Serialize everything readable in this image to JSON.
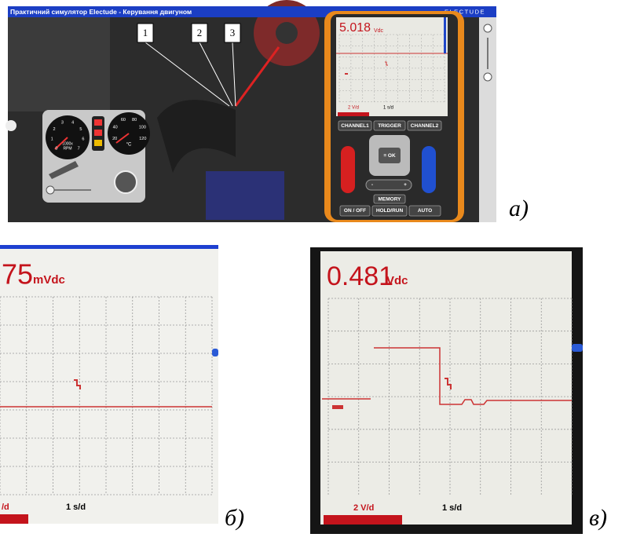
{
  "panel_a": {
    "label": "а)",
    "title_bar": {
      "title": "Практичний симулятор Electude - Керування двигуном",
      "brand": "ELECTUDE"
    },
    "callouts": [
      "1",
      "2",
      "3"
    ],
    "dashboard": {
      "rpm_scale": [
        "0",
        "1",
        "2",
        "3",
        "4",
        "5",
        "6",
        "7"
      ],
      "rpm_unit": [
        "1000x",
        "RPM"
      ],
      "temp_scale": [
        "20",
        "40",
        "60",
        "80",
        "100",
        "120"
      ],
      "temp_unit": "°C"
    },
    "scope": {
      "reading": "5.018",
      "unit": "Vdc",
      "volts_per_div": "2 V/d",
      "time_per_div": "1 s/d",
      "buttons": {
        "channel1": "CHANNEL1",
        "trigger": "TRIGGER",
        "channel2": "CHANNEL2",
        "ok": "≡ OK",
        "plus": "+",
        "minus": "-",
        "memory": "MEMORY",
        "on_off": "ON / OFF",
        "hold_run": "HOLD/RUN",
        "auto": "AUTO"
      }
    }
  },
  "panel_b": {
    "label": "б)",
    "reading": "75",
    "unit": "mVdc",
    "volts_per_div": "/d",
    "time_per_div": "1 s/d"
  },
  "panel_c": {
    "label": "в)",
    "reading": "0.481",
    "unit": "Vdc",
    "volts_per_div": "2 V/d",
    "time_per_div": "1 s/d"
  }
}
